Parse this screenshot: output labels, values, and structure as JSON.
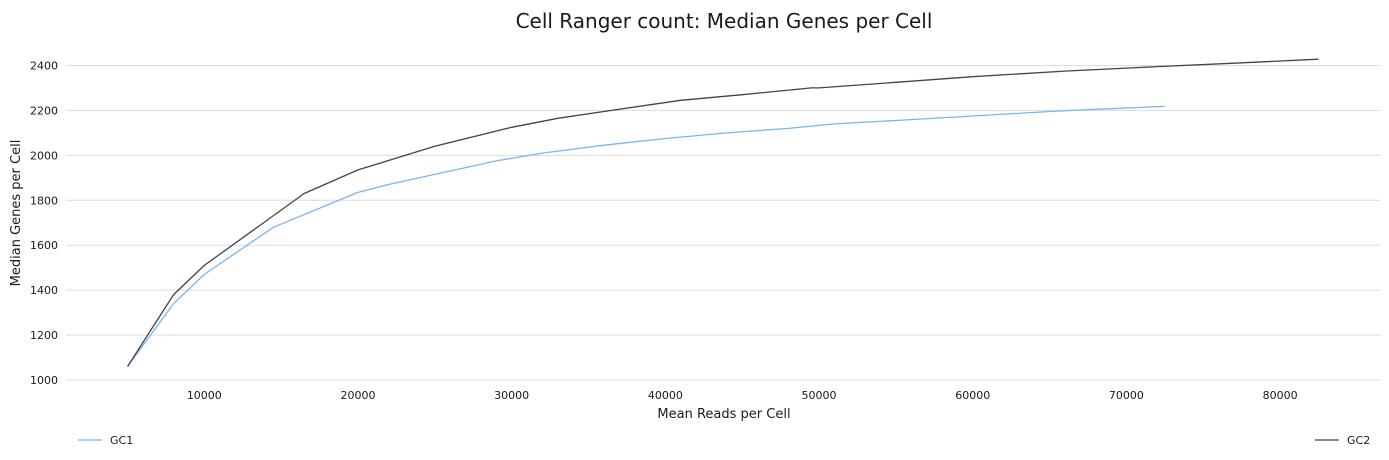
{
  "chart_data": {
    "type": "line",
    "title": "Cell Ranger count: Median Genes per Cell",
    "xlabel": "Mean Reads per Cell",
    "ylabel": "Median Genes per Cell",
    "xlim": [
      1000,
      86500
    ],
    "ylim": [
      1000,
      2500
    ],
    "x_ticks": [
      10000,
      20000,
      30000,
      40000,
      50000,
      60000,
      70000,
      80000
    ],
    "y_ticks": [
      1000,
      1200,
      1400,
      1600,
      1800,
      2000,
      2200,
      2400
    ],
    "grid": "horizontal",
    "legend": "bottom",
    "series": [
      {
        "name": "GC1",
        "color": "#7cb5ec",
        "x": [
          5000,
          8000,
          10000,
          14500,
          20000,
          22000,
          25000,
          29000,
          32000,
          36000,
          40000,
          44000,
          48000,
          51000,
          55000,
          60000,
          65000,
          68000,
          72500
        ],
        "y": [
          1060,
          1340,
          1470,
          1680,
          1835,
          1870,
          1915,
          1975,
          2010,
          2045,
          2075,
          2100,
          2120,
          2140,
          2155,
          2175,
          2195,
          2205,
          2218
        ]
      },
      {
        "name": "GC2",
        "color": "#434348",
        "x": [
          5000,
          8000,
          10000,
          16500,
          20000,
          25000,
          30000,
          33000,
          36000,
          41000,
          45000,
          49500,
          50000,
          55000,
          60000,
          66000,
          72000,
          77000,
          82500
        ],
        "y": [
          1060,
          1380,
          1510,
          1830,
          1935,
          2040,
          2125,
          2165,
          2195,
          2245,
          2270,
          2300,
          2300,
          2325,
          2350,
          2375,
          2395,
          2410,
          2428
        ]
      }
    ]
  }
}
